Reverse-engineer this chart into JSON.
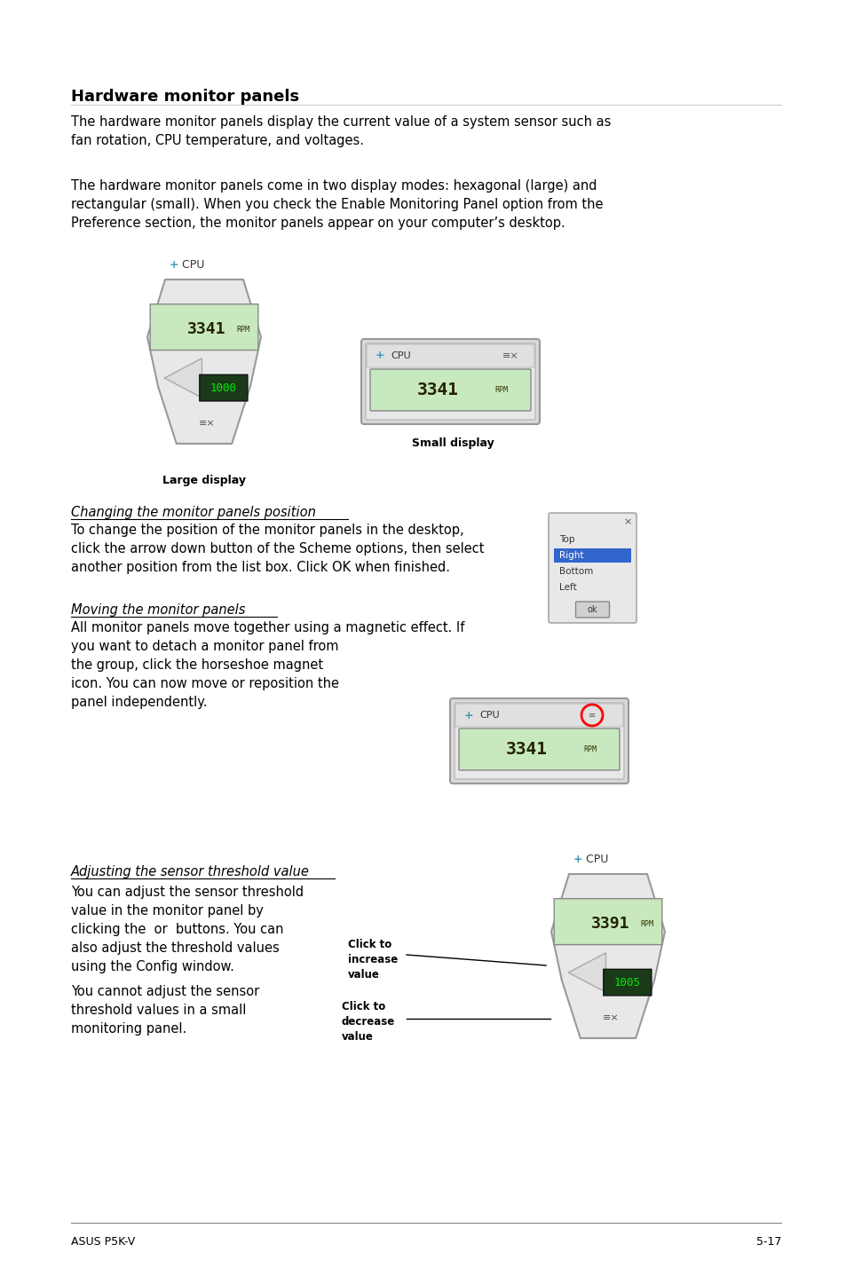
{
  "page_bg": "#ffffff",
  "title": "Hardware monitor panels",
  "para1": "The hardware monitor panels display the current value of a system sensor such as\nfan rotation, CPU temperature, and voltages.",
  "para2": "The hardware monitor panels come in two display modes: hexagonal (large) and\nrectangular (small). When you check the Enable Monitoring Panel option from the\nPreference section, the monitor panels appear on your computer’s desktop.",
  "section1_heading": "Changing the monitor panels position",
  "section1_text": "To change the position of the monitor panels in the desktop,\nclick the arrow down button of the Scheme options, then select\nanother position from the list box. Click OK when finished.",
  "section2_heading": "Moving the monitor panels",
  "section2_text": "All monitor panels move together using a magnetic effect. If\nyou want to detach a monitor panel from\nthe group, click the horseshoe magnet\nicon. You can now move or reposition the\npanel independently.",
  "section3_heading": "Adjusting the sensor threshold value",
  "section3_text1": "You can adjust the sensor threshold\nvalue in the monitor panel by\nclicking the  or  buttons. You can\nalso adjust the threshold values\nusing the Config window.",
  "section3_text2": "You cannot adjust the sensor\nthreshold values in a small\nmonitoring panel.",
  "label_large": "Large display",
  "label_small": "Small display",
  "label_click_increase": "Click to\nincrease\nvalue",
  "label_click_decrease": "Click to\ndecrease\nvalue",
  "footer_left": "ASUS P5K-V",
  "footer_right": "5-17",
  "lcd_green": "#c8e8c0",
  "lcd_dark_green": "#1a3a1a",
  "lcd_text_green": "#00cc00",
  "panel_gray": "#c8c8c8",
  "panel_light": "#e8e8e8",
  "panel_border": "#999999",
  "cpu_blue": "#4a9ab0",
  "highlight_blue": "#3366cc"
}
